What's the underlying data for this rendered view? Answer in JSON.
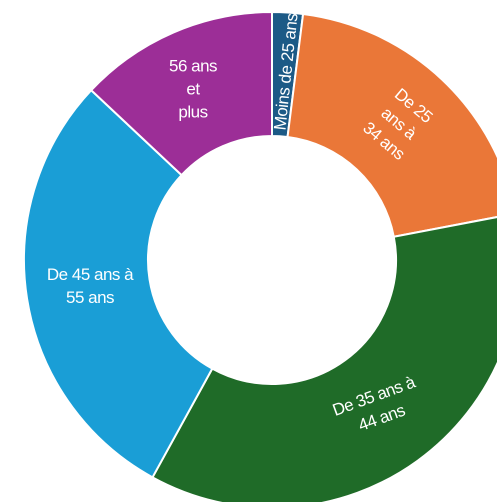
{
  "chart_data": {
    "type": "donut",
    "categories": [
      [
        "Moins de 25 ans"
      ],
      [
        "De 25",
        "ans à",
        "34 ans"
      ],
      [
        "De 35 ans à",
        "44 ans"
      ],
      [
        "De 45 ans à",
        "55 ans"
      ],
      [
        "56 ans",
        "et",
        "plus"
      ]
    ],
    "values": [
      2,
      20,
      36,
      29,
      13
    ],
    "colors": [
      "#1c5a86",
      "#ea7738",
      "#1f6b28",
      "#1a9ed6",
      "#9c2e97"
    ]
  }
}
